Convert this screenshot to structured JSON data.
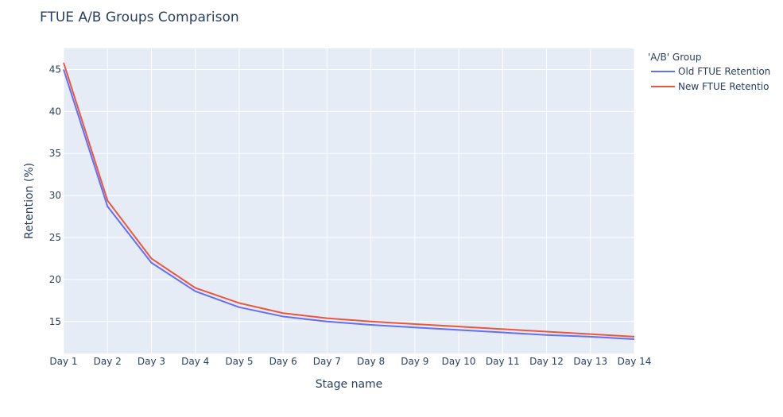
{
  "chart_data": {
    "type": "line",
    "title": "FTUE A/B Groups Comparison",
    "xlabel": "Stage name",
    "ylabel": "Retention (%)",
    "categories": [
      "Day 1",
      "Day 2",
      "Day 3",
      "Day 4",
      "Day 5",
      "Day 6",
      "Day 7",
      "Day 8",
      "Day 9",
      "Day 10",
      "Day 11",
      "Day 12",
      "Day 13",
      "Day 14"
    ],
    "ylim": [
      11.2,
      47.5
    ],
    "yticks": [
      15,
      20,
      25,
      30,
      35,
      40,
      45
    ],
    "grid": true,
    "legend_title": "'A/B' Group",
    "legend_position": "top-right outside",
    "series": [
      {
        "name": "Old FTUE Retention",
        "color": "#636efa",
        "values": [
          45.0,
          28.7,
          22.0,
          18.6,
          16.7,
          15.6,
          15.0,
          14.6,
          14.3,
          14.0,
          13.7,
          13.4,
          13.2,
          12.9
        ]
      },
      {
        "name": "New FTUE Retentio",
        "color": "#ef553b",
        "values": [
          45.8,
          29.4,
          22.5,
          19.0,
          17.2,
          16.0,
          15.4,
          15.0,
          14.7,
          14.4,
          14.1,
          13.8,
          13.5,
          13.2
        ]
      }
    ],
    "plot_bg": "#e5ecf6",
    "grid_color": "#ffffff"
  }
}
